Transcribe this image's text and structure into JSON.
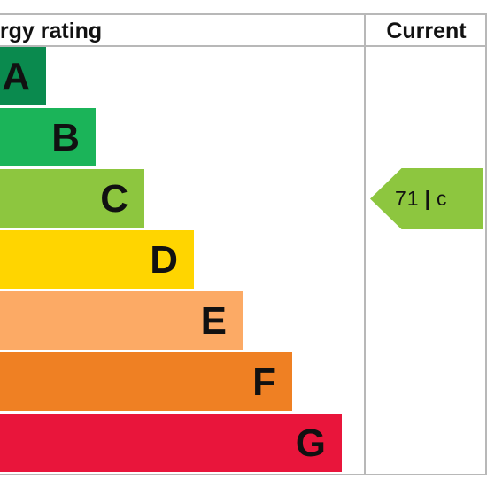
{
  "chart_data": {
    "type": "bar",
    "header_left": "ergy rating",
    "header_right": "Current",
    "bands": [
      {
        "letter": "A",
        "color": "#0a8a4e"
      },
      {
        "letter": "B",
        "color": "#1bb459"
      },
      {
        "letter": "C",
        "color": "#8dc63f"
      },
      {
        "letter": "D",
        "color": "#ffd500"
      },
      {
        "letter": "E",
        "color": "#fcaa65"
      },
      {
        "letter": "F",
        "color": "#ef8023"
      },
      {
        "letter": "G",
        "color": "#e9153b"
      }
    ],
    "current": {
      "value": "71",
      "separator": "|",
      "rating": "c",
      "band_index": 2,
      "color": "#8dc63f"
    }
  }
}
